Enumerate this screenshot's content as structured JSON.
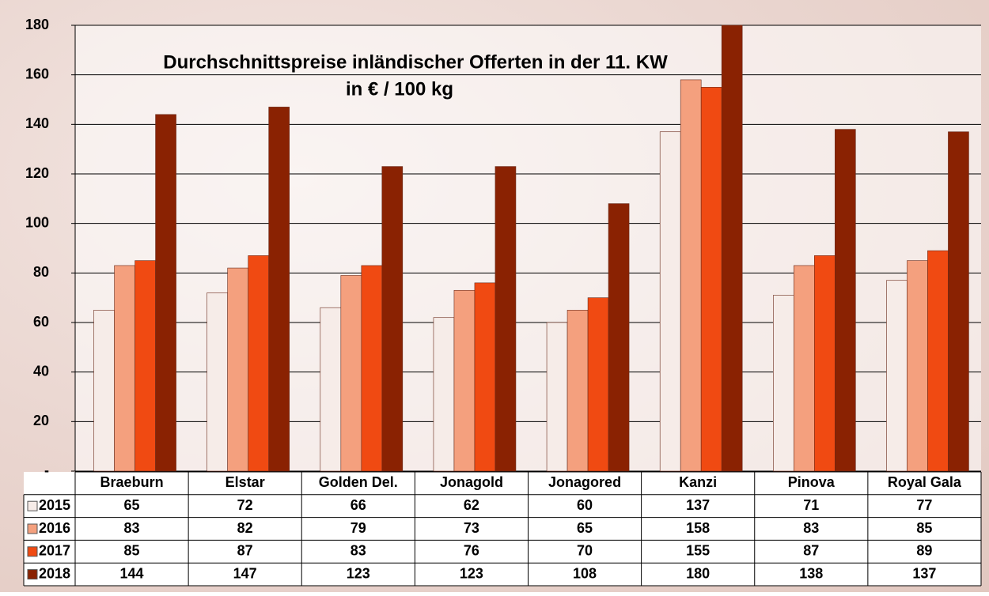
{
  "chart_data": {
    "type": "bar",
    "title": "Durchschnittspreise inländischer Offerten in der 11. KW",
    "subtitle": "in € / 100 kg",
    "categories": [
      "Braeburn",
      "Elstar",
      "Golden Del.",
      "Jonagold",
      "Jonagored",
      "Kanzi",
      "Pinova",
      "Royal Gala"
    ],
    "series": [
      {
        "name": "2015",
        "color": "#f6ece8",
        "values": [
          65,
          72,
          66,
          62,
          60,
          137,
          71,
          77
        ]
      },
      {
        "name": "2016",
        "color": "#f4a07e",
        "values": [
          83,
          82,
          79,
          73,
          65,
          158,
          83,
          85
        ]
      },
      {
        "name": "2017",
        "color": "#f04a12",
        "values": [
          85,
          87,
          83,
          76,
          70,
          155,
          87,
          89
        ]
      },
      {
        "name": "2018",
        "color": "#8a2202",
        "values": [
          144,
          147,
          123,
          123,
          108,
          180,
          138,
          137
        ]
      }
    ],
    "ylim": [
      0,
      180
    ],
    "yticks": [
      {
        "value": 0,
        "label": "-"
      },
      20,
      40,
      60,
      80,
      100,
      120,
      140,
      160,
      180
    ],
    "grid": true
  }
}
